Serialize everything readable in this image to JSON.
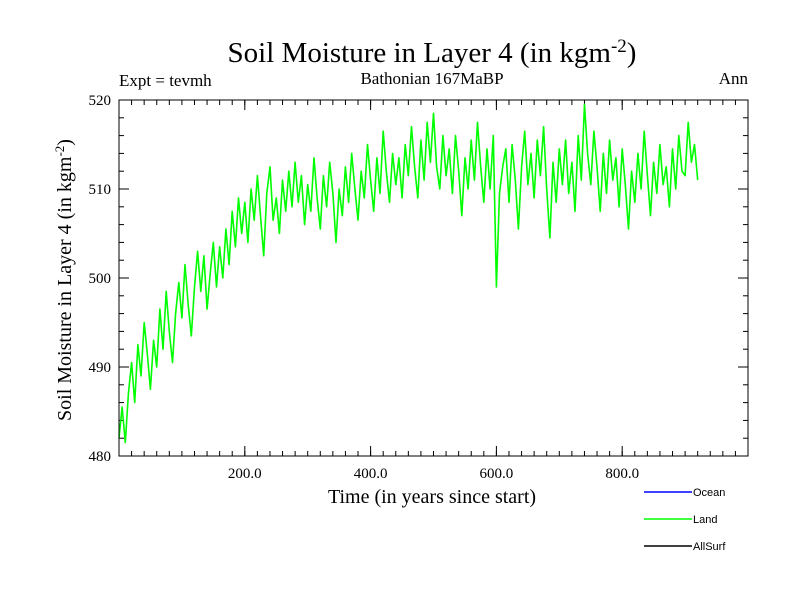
{
  "chart_data": {
    "type": "line",
    "title": "Soil Moisture in Layer 4 (in kgm",
    "title_sup": "-2",
    "title_close": ")",
    "subtitle_left": "Expt = tevmh",
    "subtitle_center": "Bathonian 167MaBP",
    "subtitle_right": "Ann",
    "xlabel": "Time (in years since start)",
    "ylabel": "Soil Moisture in Layer 4 (in kgm",
    "ylabel_sup": "-2",
    "ylabel_close": ")",
    "xlim": [
      0,
      1000
    ],
    "ylim": [
      480,
      520
    ],
    "x_ticks": [
      {
        "value": 200,
        "label": "200.0"
      },
      {
        "value": 400,
        "label": "400.0"
      },
      {
        "value": 600,
        "label": "600.0"
      },
      {
        "value": 800,
        "label": "800.0"
      }
    ],
    "y_ticks": [
      {
        "value": 480,
        "label": "480"
      },
      {
        "value": 490,
        "label": "490"
      },
      {
        "value": 500,
        "label": "500"
      },
      {
        "value": 510,
        "label": "510"
      },
      {
        "value": 520,
        "label": "520"
      }
    ],
    "legend": [
      {
        "name": "Ocean",
        "color": "#0000ff"
      },
      {
        "name": "Land",
        "color": "#00ff00"
      },
      {
        "name": "AllSurf",
        "color": "#000000"
      }
    ],
    "series": [
      {
        "name": "Land",
        "color": "#00ff00",
        "x_start": 0,
        "x_step": 5,
        "values": [
          482.0,
          485.5,
          481.5,
          487.0,
          490.5,
          486.0,
          492.5,
          489.0,
          495.0,
          491.5,
          487.5,
          493.0,
          490.0,
          496.5,
          492.0,
          498.5,
          494.0,
          490.5,
          496.0,
          499.5,
          495.5,
          501.5,
          497.0,
          493.5,
          499.0,
          503.0,
          498.5,
          502.5,
          496.5,
          500.5,
          504.0,
          499.0,
          503.5,
          500.0,
          505.5,
          501.5,
          507.5,
          503.5,
          509.0,
          505.0,
          508.5,
          504.0,
          510.0,
          506.5,
          511.5,
          507.0,
          502.5,
          509.5,
          512.5,
          506.5,
          509.0,
          505.0,
          511.0,
          507.5,
          512.0,
          508.0,
          513.0,
          508.5,
          511.5,
          506.0,
          510.5,
          507.5,
          513.5,
          509.0,
          505.5,
          511.5,
          508.0,
          513.0,
          509.5,
          504.0,
          510.0,
          507.0,
          512.5,
          508.5,
          514.0,
          510.0,
          506.5,
          512.0,
          509.0,
          515.0,
          511.0,
          507.5,
          513.5,
          509.5,
          516.5,
          512.0,
          508.5,
          514.0,
          510.5,
          513.5,
          509.0,
          515.0,
          511.5,
          517.0,
          512.5,
          509.0,
          515.5,
          511.0,
          517.5,
          513.0,
          518.5,
          512.5,
          510.0,
          516.0,
          511.5,
          514.5,
          509.5,
          516.0,
          512.0,
          507.0,
          513.5,
          510.0,
          515.5,
          511.0,
          517.5,
          512.5,
          508.5,
          514.5,
          510.0,
          516.0,
          499.0,
          509.5,
          512.5,
          514.5,
          508.5,
          515.0,
          511.0,
          505.5,
          512.5,
          516.5,
          510.5,
          514.0,
          509.0,
          515.5,
          511.5,
          517.0,
          510.0,
          504.5,
          513.0,
          508.5,
          514.5,
          510.5,
          515.5,
          509.5,
          513.0,
          507.5,
          516.0,
          511.0,
          519.5,
          514.0,
          510.5,
          516.5,
          512.5,
          507.5,
          514.0,
          509.5,
          515.5,
          511.0,
          513.5,
          508.0,
          514.5,
          510.5,
          505.5,
          512.0,
          508.5,
          514.0,
          510.0,
          516.5,
          511.5,
          507.0,
          513.0,
          509.5,
          515.0,
          510.5,
          512.5,
          508.0,
          514.5,
          510.0,
          516.0,
          512.0,
          511.5,
          517.5,
          513.0,
          515.0,
          511.0
        ]
      }
    ]
  }
}
